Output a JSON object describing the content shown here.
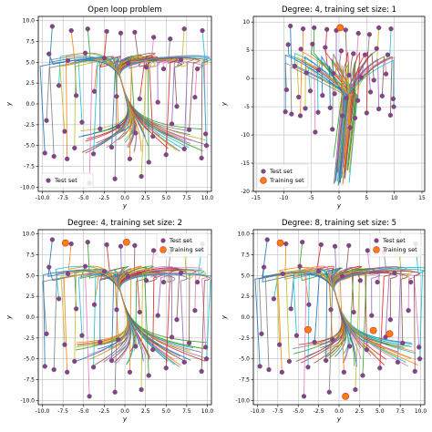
{
  "colors": {
    "traj": [
      "#1f77b4",
      "#ff7f0e",
      "#2ca02c",
      "#d62728",
      "#9467bd",
      "#8c564b",
      "#e377c2",
      "#7f7f7f",
      "#bcbd22",
      "#17becf"
    ],
    "test_face": "#8a3f8f",
    "test_edge": "#5e5e5e",
    "train_face": "#ff7f0e",
    "train_edge": "#d62728",
    "grid": "#b0b0b0"
  },
  "chart_data": [
    {
      "type": "scatter",
      "title": "Open loop problem",
      "xlabel": "y",
      "ylabel": "y",
      "xlim": [
        -10.5,
        10.5
      ],
      "ylim": [
        -10.5,
        10.5
      ],
      "xticks": [
        "-10.0",
        "-7.5",
        "-5.0",
        "-2.5",
        "0.0",
        "2.5",
        "5.0",
        "7.5",
        "10.0"
      ],
      "yticks": [
        "-10.0",
        "-7.5",
        "-5.0",
        "-2.5",
        "0.0",
        "2.5",
        "5.0",
        "7.5",
        "10.0"
      ],
      "grid": true,
      "legend": {
        "position": "lower-left",
        "entries": [
          "Test set"
        ]
      },
      "test_set": [
        [
          -8.8,
          9.3
        ],
        [
          -6.5,
          8.8
        ],
        [
          -4.5,
          9.0
        ],
        [
          -2.2,
          8.7
        ],
        [
          -0.5,
          8.5
        ],
        [
          1.2,
          8.6
        ],
        [
          3.5,
          8.0
        ],
        [
          5.5,
          7.8
        ],
        [
          7.2,
          9.0
        ],
        [
          9.4,
          8.8
        ],
        [
          -9.2,
          6.0
        ],
        [
          -6.9,
          5.2
        ],
        [
          -4.8,
          6.1
        ],
        [
          -2.5,
          5.5
        ],
        [
          0.4,
          4.9
        ],
        [
          2.6,
          4.4
        ],
        [
          4.7,
          4.2
        ],
        [
          6.8,
          5.3
        ],
        [
          8.8,
          4.2
        ],
        [
          -8.0,
          2.2
        ],
        [
          -5.9,
          1.0
        ],
        [
          -3.7,
          1.5
        ],
        [
          -1.0,
          0.9
        ],
        [
          1.8,
          0.6
        ],
        [
          4.0,
          0.2
        ],
        [
          6.3,
          -0.3
        ],
        [
          8.5,
          0.8
        ],
        [
          -9.5,
          -2.0
        ],
        [
          -7.3,
          -3.3
        ],
        [
          -5.2,
          -2.2
        ],
        [
          -3.0,
          -3.0
        ],
        [
          -0.8,
          -2.7
        ],
        [
          1.3,
          -3.5
        ],
        [
          3.4,
          -3.9
        ],
        [
          5.7,
          -2.4
        ],
        [
          7.8,
          -3.1
        ],
        [
          9.8,
          -3.6
        ],
        [
          -8.6,
          -6.3
        ],
        [
          -6.1,
          -5.3
        ],
        [
          -3.8,
          -6.0
        ],
        [
          -1.6,
          -5.2
        ],
        [
          0.6,
          -6.6
        ],
        [
          2.9,
          -7.0
        ],
        [
          5.0,
          -6.1
        ],
        [
          7.2,
          -5.4
        ],
        [
          9.3,
          -6.5
        ],
        [
          -4.3,
          -9.5
        ],
        [
          -1.2,
          -9.0
        ],
        [
          2.0,
          -8.7
        ],
        [
          9.9,
          -5.0
        ],
        [
          -9.7,
          -5.9
        ],
        [
          -7.0,
          -6.6
        ]
      ],
      "training_set": []
    },
    {
      "type": "scatter",
      "title": "Degree: 4, training set size: 1",
      "xlabel": "y",
      "ylabel": "y",
      "xlim": [
        -15.5,
        15.5
      ],
      "ylim": [
        -20,
        11
      ],
      "xticks": [
        "-15",
        "-10",
        "-5",
        "0",
        "5",
        "10",
        "15"
      ],
      "yticks": [
        "-20",
        "-15",
        "-10",
        "-5",
        "0",
        "5",
        "10"
      ],
      "grid": true,
      "legend": {
        "position": "lower-left",
        "entries": [
          "Test set",
          "Training set"
        ]
      },
      "test_set": [
        [
          -8.8,
          9.3
        ],
        [
          -6.5,
          8.8
        ],
        [
          -4.5,
          9.0
        ],
        [
          -2.2,
          8.7
        ],
        [
          -0.5,
          8.5
        ],
        [
          1.2,
          8.6
        ],
        [
          3.5,
          8.0
        ],
        [
          5.5,
          7.8
        ],
        [
          7.2,
          9.0
        ],
        [
          9.4,
          8.8
        ],
        [
          -9.2,
          6.0
        ],
        [
          -6.9,
          5.2
        ],
        [
          -4.8,
          6.1
        ],
        [
          -2.5,
          5.5
        ],
        [
          0.4,
          4.9
        ],
        [
          2.6,
          4.4
        ],
        [
          4.7,
          4.2
        ],
        [
          6.8,
          5.3
        ],
        [
          8.8,
          4.2
        ],
        [
          -8.0,
          2.2
        ],
        [
          -5.9,
          1.0
        ],
        [
          -3.7,
          1.5
        ],
        [
          -1.0,
          0.9
        ],
        [
          1.8,
          0.6
        ],
        [
          4.0,
          0.2
        ],
        [
          6.3,
          -0.3
        ],
        [
          8.5,
          0.8
        ],
        [
          -9.5,
          -2.0
        ],
        [
          -7.3,
          -3.3
        ],
        [
          -5.2,
          -2.2
        ],
        [
          -3.0,
          -3.0
        ],
        [
          -0.8,
          -2.7
        ],
        [
          1.3,
          -3.5
        ],
        [
          3.4,
          -3.9
        ],
        [
          5.7,
          -2.4
        ],
        [
          7.8,
          -3.1
        ],
        [
          9.8,
          -3.6
        ],
        [
          -8.6,
          -6.3
        ],
        [
          -6.1,
          -5.3
        ],
        [
          -3.8,
          -6.0
        ],
        [
          -1.6,
          -5.2
        ],
        [
          0.6,
          -6.6
        ],
        [
          2.9,
          -7.0
        ],
        [
          5.0,
          -6.1
        ],
        [
          7.2,
          -5.4
        ],
        [
          9.3,
          -6.5
        ],
        [
          -4.3,
          -9.5
        ],
        [
          -1.2,
          -9.0
        ],
        [
          2.0,
          -8.7
        ],
        [
          9.9,
          -5.0
        ],
        [
          -9.7,
          -5.9
        ],
        [
          -7.0,
          -6.6
        ]
      ],
      "training_set": [
        [
          0.2,
          9.0
        ]
      ]
    },
    {
      "type": "scatter",
      "title": "Degree: 4, training set size: 2",
      "xlabel": "y",
      "ylabel": "y",
      "xlim": [
        -10.5,
        10.5
      ],
      "ylim": [
        -10.5,
        10.5
      ],
      "xticks": [
        "-10.0",
        "-7.5",
        "-5.0",
        "-2.5",
        "0.0",
        "2.5",
        "5.0",
        "7.5",
        "10.0"
      ],
      "yticks": [
        "-10.0",
        "-7.5",
        "-5.0",
        "-2.5",
        "0.0",
        "2.5",
        "5.0",
        "7.5",
        "10.0"
      ],
      "grid": true,
      "legend": {
        "position": "upper-right",
        "entries": [
          "Test set",
          "Training set"
        ]
      },
      "test_set": [
        [
          -8.8,
          9.3
        ],
        [
          -6.5,
          8.8
        ],
        [
          -4.5,
          9.0
        ],
        [
          -2.2,
          8.7
        ],
        [
          -0.5,
          8.5
        ],
        [
          1.2,
          8.6
        ],
        [
          3.5,
          8.0
        ],
        [
          5.5,
          7.8
        ],
        [
          7.2,
          9.0
        ],
        [
          9.4,
          8.8
        ],
        [
          -9.2,
          6.0
        ],
        [
          -6.9,
          5.2
        ],
        [
          -4.8,
          6.1
        ],
        [
          -2.5,
          5.5
        ],
        [
          0.4,
          4.9
        ],
        [
          2.6,
          4.4
        ],
        [
          4.7,
          4.2
        ],
        [
          6.8,
          5.3
        ],
        [
          8.8,
          4.2
        ],
        [
          -8.0,
          2.2
        ],
        [
          -5.9,
          1.0
        ],
        [
          -3.7,
          1.5
        ],
        [
          -1.0,
          0.9
        ],
        [
          1.8,
          0.6
        ],
        [
          4.0,
          0.2
        ],
        [
          6.3,
          -0.3
        ],
        [
          8.5,
          0.8
        ],
        [
          -9.5,
          -2.0
        ],
        [
          -7.3,
          -3.3
        ],
        [
          -5.2,
          -2.2
        ],
        [
          -3.0,
          -3.0
        ],
        [
          -0.8,
          -2.7
        ],
        [
          1.3,
          -3.5
        ],
        [
          3.4,
          -3.9
        ],
        [
          5.7,
          -2.4
        ],
        [
          7.8,
          -3.1
        ],
        [
          9.8,
          -3.6
        ],
        [
          -8.6,
          -6.3
        ],
        [
          -6.1,
          -5.3
        ],
        [
          -3.8,
          -6.0
        ],
        [
          -1.6,
          -5.2
        ],
        [
          0.6,
          -6.6
        ],
        [
          2.9,
          -7.0
        ],
        [
          5.0,
          -6.1
        ],
        [
          7.2,
          -5.4
        ],
        [
          9.3,
          -6.5
        ],
        [
          -4.3,
          -9.5
        ],
        [
          -1.2,
          -9.0
        ],
        [
          2.0,
          -8.7
        ],
        [
          9.9,
          -5.0
        ],
        [
          -9.7,
          -5.9
        ],
        [
          -7.0,
          -6.6
        ]
      ],
      "training_set": [
        [
          -7.2,
          8.9
        ],
        [
          0.2,
          9.0
        ]
      ]
    },
    {
      "type": "scatter",
      "title": "Degree: 8, training set size: 5",
      "xlabel": "y",
      "ylabel": "y",
      "xlim": [
        -10.5,
        10.5
      ],
      "ylim": [
        -10.5,
        10.5
      ],
      "xticks": [
        "-10.0",
        "-7.5",
        "-5.0",
        "-2.5",
        "0.0",
        "2.5",
        "5.0",
        "7.5",
        "10.0"
      ],
      "yticks": [
        "-10.0",
        "-7.5",
        "-5.0",
        "-2.5",
        "0.0",
        "2.5",
        "5.0",
        "7.5",
        "10.0"
      ],
      "grid": true,
      "legend": {
        "position": "upper-right",
        "entries": [
          "Test set",
          "Training set"
        ]
      },
      "test_set": [
        [
          -8.8,
          9.3
        ],
        [
          -6.5,
          8.8
        ],
        [
          -4.5,
          9.0
        ],
        [
          -2.2,
          8.7
        ],
        [
          -0.5,
          8.5
        ],
        [
          1.2,
          8.6
        ],
        [
          3.5,
          8.0
        ],
        [
          5.5,
          7.8
        ],
        [
          7.2,
          9.0
        ],
        [
          9.4,
          8.8
        ],
        [
          -9.2,
          6.0
        ],
        [
          -6.9,
          5.2
        ],
        [
          -4.8,
          6.1
        ],
        [
          -2.5,
          5.5
        ],
        [
          0.4,
          4.9
        ],
        [
          2.6,
          4.4
        ],
        [
          4.7,
          4.2
        ],
        [
          6.8,
          5.3
        ],
        [
          8.8,
          4.2
        ],
        [
          -8.0,
          2.2
        ],
        [
          -5.9,
          1.0
        ],
        [
          -3.7,
          1.5
        ],
        [
          -1.0,
          0.9
        ],
        [
          1.8,
          0.6
        ],
        [
          4.0,
          0.2
        ],
        [
          6.3,
          -0.3
        ],
        [
          8.5,
          0.8
        ],
        [
          -9.5,
          -2.0
        ],
        [
          -7.3,
          -3.3
        ],
        [
          -5.2,
          -2.2
        ],
        [
          -3.0,
          -3.0
        ],
        [
          -0.8,
          -2.7
        ],
        [
          1.3,
          -3.5
        ],
        [
          3.4,
          -3.9
        ],
        [
          5.7,
          -2.4
        ],
        [
          7.8,
          -3.1
        ],
        [
          9.8,
          -3.6
        ],
        [
          -8.6,
          -6.3
        ],
        [
          -6.1,
          -5.3
        ],
        [
          -3.8,
          -6.0
        ],
        [
          -1.6,
          -5.2
        ],
        [
          0.6,
          -6.6
        ],
        [
          2.9,
          -7.0
        ],
        [
          5.0,
          -6.1
        ],
        [
          7.2,
          -5.4
        ],
        [
          9.3,
          -6.5
        ],
        [
          -4.3,
          -9.5
        ],
        [
          -1.2,
          -9.0
        ],
        [
          2.0,
          -8.7
        ],
        [
          9.9,
          -5.0
        ],
        [
          -9.7,
          -5.9
        ],
        [
          -7.0,
          -6.6
        ]
      ],
      "training_set": [
        [
          -7.2,
          8.9
        ],
        [
          -3.8,
          -1.5
        ],
        [
          4.2,
          -1.6
        ],
        [
          6.2,
          -2.0
        ],
        [
          0.8,
          -9.5
        ]
      ]
    }
  ]
}
